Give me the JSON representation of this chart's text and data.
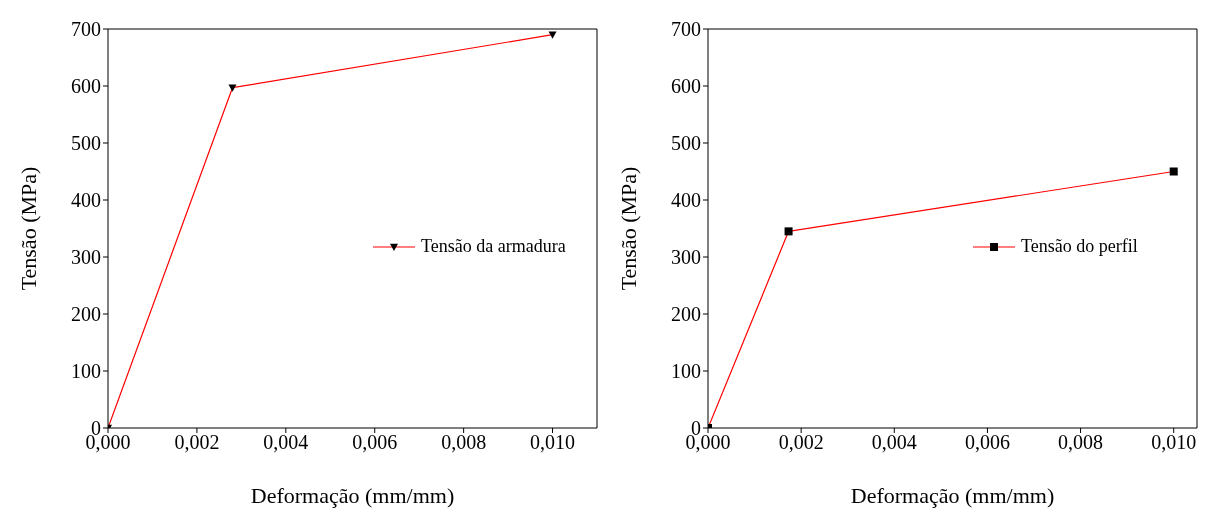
{
  "chart_data": [
    {
      "type": "line",
      "xlabel": "Deformação (mm/mm)",
      "ylabel": "Tensão (MPa)",
      "x": [
        0,
        0.0028,
        0.01
      ],
      "series": [
        {
          "name": "Tensão da armadura",
          "color": "#ff0000",
          "values": [
            0,
            597,
            690
          ]
        }
      ],
      "marker": "triangle",
      "legend": "right",
      "grid": false,
      "xlim": [
        0,
        0.011
      ],
      "ylim": [
        0,
        700
      ],
      "xticks": [
        {
          "value": 0,
          "label": "0,000"
        },
        {
          "value": 0.002,
          "label": "0,002"
        },
        {
          "value": 0.004,
          "label": "0,004"
        },
        {
          "value": 0.006,
          "label": "0,006"
        },
        {
          "value": 0.008,
          "label": "0,008"
        },
        {
          "value": 0.01,
          "label": "0,010"
        }
      ],
      "yticks": [
        0,
        100,
        200,
        300,
        400,
        500,
        600,
        700
      ]
    },
    {
      "type": "line",
      "xlabel": "Deformação (mm/mm)",
      "ylabel": "Tensão (MPa)",
      "x": [
        0,
        0.00173,
        0.01
      ],
      "series": [
        {
          "name": "Tensão do perfil",
          "color": "#ff0000",
          "values": [
            0,
            345,
            450
          ]
        }
      ],
      "marker": "square",
      "legend": "right",
      "grid": false,
      "xlim": [
        0,
        0.0105
      ],
      "ylim": [
        0,
        700
      ],
      "xticks": [
        {
          "value": 0,
          "label": "0,000"
        },
        {
          "value": 0.002,
          "label": "0,002"
        },
        {
          "value": 0.004,
          "label": "0,004"
        },
        {
          "value": 0.006,
          "label": "0,006"
        },
        {
          "value": 0.008,
          "label": "0,008"
        },
        {
          "value": 0.01,
          "label": "0,010"
        }
      ],
      "yticks": [
        0,
        100,
        200,
        300,
        400,
        500,
        600,
        700
      ]
    }
  ]
}
